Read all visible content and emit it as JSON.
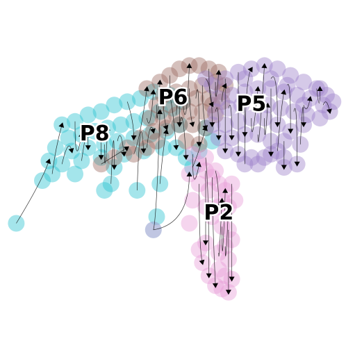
{
  "chart_data": {
    "type": "scatter",
    "title": "",
    "xlabel": "",
    "ylabel": "",
    "xlim": [
      0,
      100
    ],
    "ylim": [
      0,
      100
    ],
    "grid": false,
    "legend": "none",
    "overlay": "velocity-streamlines",
    "series": [
      {
        "name": "P8",
        "color": "#27c2cf",
        "label_pos": [
          26,
          62
        ],
        "points": [
          [
            16,
            65
          ],
          [
            20,
            66
          ],
          [
            24,
            68
          ],
          [
            28,
            69
          ],
          [
            32,
            71
          ],
          [
            36,
            72
          ],
          [
            40,
            73
          ],
          [
            44,
            75
          ],
          [
            18,
            61
          ],
          [
            22,
            62
          ],
          [
            26,
            63
          ],
          [
            30,
            64
          ],
          [
            34,
            65
          ],
          [
            38,
            66
          ],
          [
            42,
            67
          ],
          [
            46,
            69
          ],
          [
            50,
            70
          ],
          [
            53,
            72
          ],
          [
            14,
            58
          ],
          [
            19,
            57
          ],
          [
            24,
            58
          ],
          [
            29,
            59
          ],
          [
            33,
            60
          ],
          [
            38,
            61
          ],
          [
            43,
            62
          ],
          [
            48,
            63
          ],
          [
            52,
            65
          ],
          [
            12,
            54
          ],
          [
            16,
            53
          ],
          [
            22,
            54
          ],
          [
            28,
            55
          ],
          [
            35,
            56
          ],
          [
            41,
            57
          ],
          [
            47,
            58
          ],
          [
            51,
            58
          ],
          [
            13,
            50
          ],
          [
            20,
            50
          ],
          [
            32,
            52
          ],
          [
            10,
            48
          ],
          [
            29,
            45
          ],
          [
            31,
            47
          ],
          [
            39,
            45
          ],
          [
            46,
            47
          ],
          [
            2,
            35
          ],
          [
            45,
            37
          ],
          [
            44,
            33
          ],
          [
            54,
            55
          ],
          [
            58,
            57
          ],
          [
            56,
            52
          ],
          [
            62,
            60
          ],
          [
            60,
            64
          ],
          [
            49,
            74
          ]
        ]
      },
      {
        "name": "P6",
        "color": "#9a6a5f",
        "label_pos": [
          50,
          73
        ],
        "points": [
          [
            42,
            76
          ],
          [
            46,
            78
          ],
          [
            49,
            80
          ],
          [
            52,
            82
          ],
          [
            55,
            83
          ],
          [
            58,
            83
          ],
          [
            61,
            82
          ],
          [
            64,
            81
          ],
          [
            47,
            74
          ],
          [
            51,
            75
          ],
          [
            55,
            76
          ],
          [
            59,
            77
          ],
          [
            63,
            78
          ],
          [
            66,
            77
          ],
          [
            45,
            71
          ],
          [
            49,
            71
          ],
          [
            53,
            72
          ],
          [
            57,
            73
          ],
          [
            61,
            73
          ],
          [
            65,
            72
          ],
          [
            43,
            67
          ],
          [
            47,
            67
          ],
          [
            51,
            68
          ],
          [
            55,
            69
          ],
          [
            59,
            69
          ],
          [
            63,
            68
          ],
          [
            44,
            63
          ],
          [
            48,
            64
          ],
          [
            52,
            65
          ],
          [
            56,
            65
          ],
          [
            60,
            64
          ],
          [
            40,
            61
          ],
          [
            36,
            58
          ],
          [
            32,
            55
          ],
          [
            28,
            53
          ],
          [
            38,
            56
          ],
          [
            42,
            58
          ],
          [
            54,
            60
          ],
          [
            58,
            59
          ],
          [
            45,
            60
          ],
          [
            65,
            75
          ],
          [
            62,
            71
          ]
        ]
      },
      {
        "name": "P5",
        "color": "#9b7fc9",
        "label_pos": [
          74,
          71
        ],
        "points": [
          [
            62,
            77
          ],
          [
            66,
            79
          ],
          [
            70,
            81
          ],
          [
            74,
            82
          ],
          [
            78,
            83
          ],
          [
            82,
            82
          ],
          [
            86,
            80
          ],
          [
            90,
            78
          ],
          [
            94,
            76
          ],
          [
            97,
            74
          ],
          [
            64,
            73
          ],
          [
            68,
            74
          ],
          [
            72,
            75
          ],
          [
            76,
            76
          ],
          [
            80,
            76
          ],
          [
            84,
            75
          ],
          [
            88,
            74
          ],
          [
            92,
            73
          ],
          [
            96,
            71
          ],
          [
            99,
            72
          ],
          [
            63,
            69
          ],
          [
            67,
            70
          ],
          [
            71,
            71
          ],
          [
            79,
            71
          ],
          [
            83,
            70
          ],
          [
            87,
            69
          ],
          [
            91,
            68
          ],
          [
            95,
            67
          ],
          [
            98,
            69
          ],
          [
            62,
            65
          ],
          [
            66,
            65
          ],
          [
            70,
            66
          ],
          [
            74,
            67
          ],
          [
            78,
            67
          ],
          [
            82,
            65
          ],
          [
            86,
            63
          ],
          [
            90,
            65
          ],
          [
            64,
            61
          ],
          [
            68,
            61
          ],
          [
            72,
            62
          ],
          [
            76,
            62
          ],
          [
            80,
            60
          ],
          [
            84,
            60
          ],
          [
            66,
            57
          ],
          [
            70,
            56
          ],
          [
            74,
            55
          ],
          [
            78,
            55
          ],
          [
            82,
            57
          ],
          [
            72,
            53
          ],
          [
            76,
            53
          ],
          [
            80,
            56
          ],
          [
            84,
            55
          ],
          [
            89,
            59
          ],
          [
            88,
            53
          ],
          [
            84,
            52
          ],
          [
            90,
            71
          ],
          [
            72,
            79
          ],
          [
            80,
            79
          ],
          [
            85,
            77
          ],
          [
            60,
            79
          ],
          [
            95,
            76
          ]
        ]
      },
      {
        "name": "P2",
        "color": "#e79bd6",
        "label_pos": [
          64,
          38
        ],
        "points": [
          [
            56,
            56
          ],
          [
            58,
            53
          ],
          [
            60,
            51
          ],
          [
            62,
            49
          ],
          [
            64,
            47
          ],
          [
            66,
            45
          ],
          [
            68,
            47
          ],
          [
            58,
            47
          ],
          [
            61,
            45
          ],
          [
            65,
            42
          ],
          [
            56,
            42
          ],
          [
            60,
            40
          ],
          [
            64,
            40
          ],
          [
            67,
            40
          ],
          [
            69,
            42
          ],
          [
            62,
            37
          ],
          [
            65,
            34
          ],
          [
            67,
            33
          ],
          [
            68,
            30
          ],
          [
            66,
            28
          ],
          [
            64,
            26
          ],
          [
            67,
            24
          ],
          [
            64,
            21
          ],
          [
            66,
            19
          ],
          [
            61,
            19
          ],
          [
            63,
            16
          ],
          [
            65,
            15
          ],
          [
            67,
            14
          ],
          [
            68,
            18
          ],
          [
            59,
            23
          ],
          [
            58,
            27
          ],
          [
            60,
            29
          ],
          [
            55,
            35
          ],
          [
            44,
            33
          ],
          [
            60,
            55
          ],
          [
            63,
            51
          ],
          [
            55,
            50
          ]
        ]
      }
    ]
  }
}
